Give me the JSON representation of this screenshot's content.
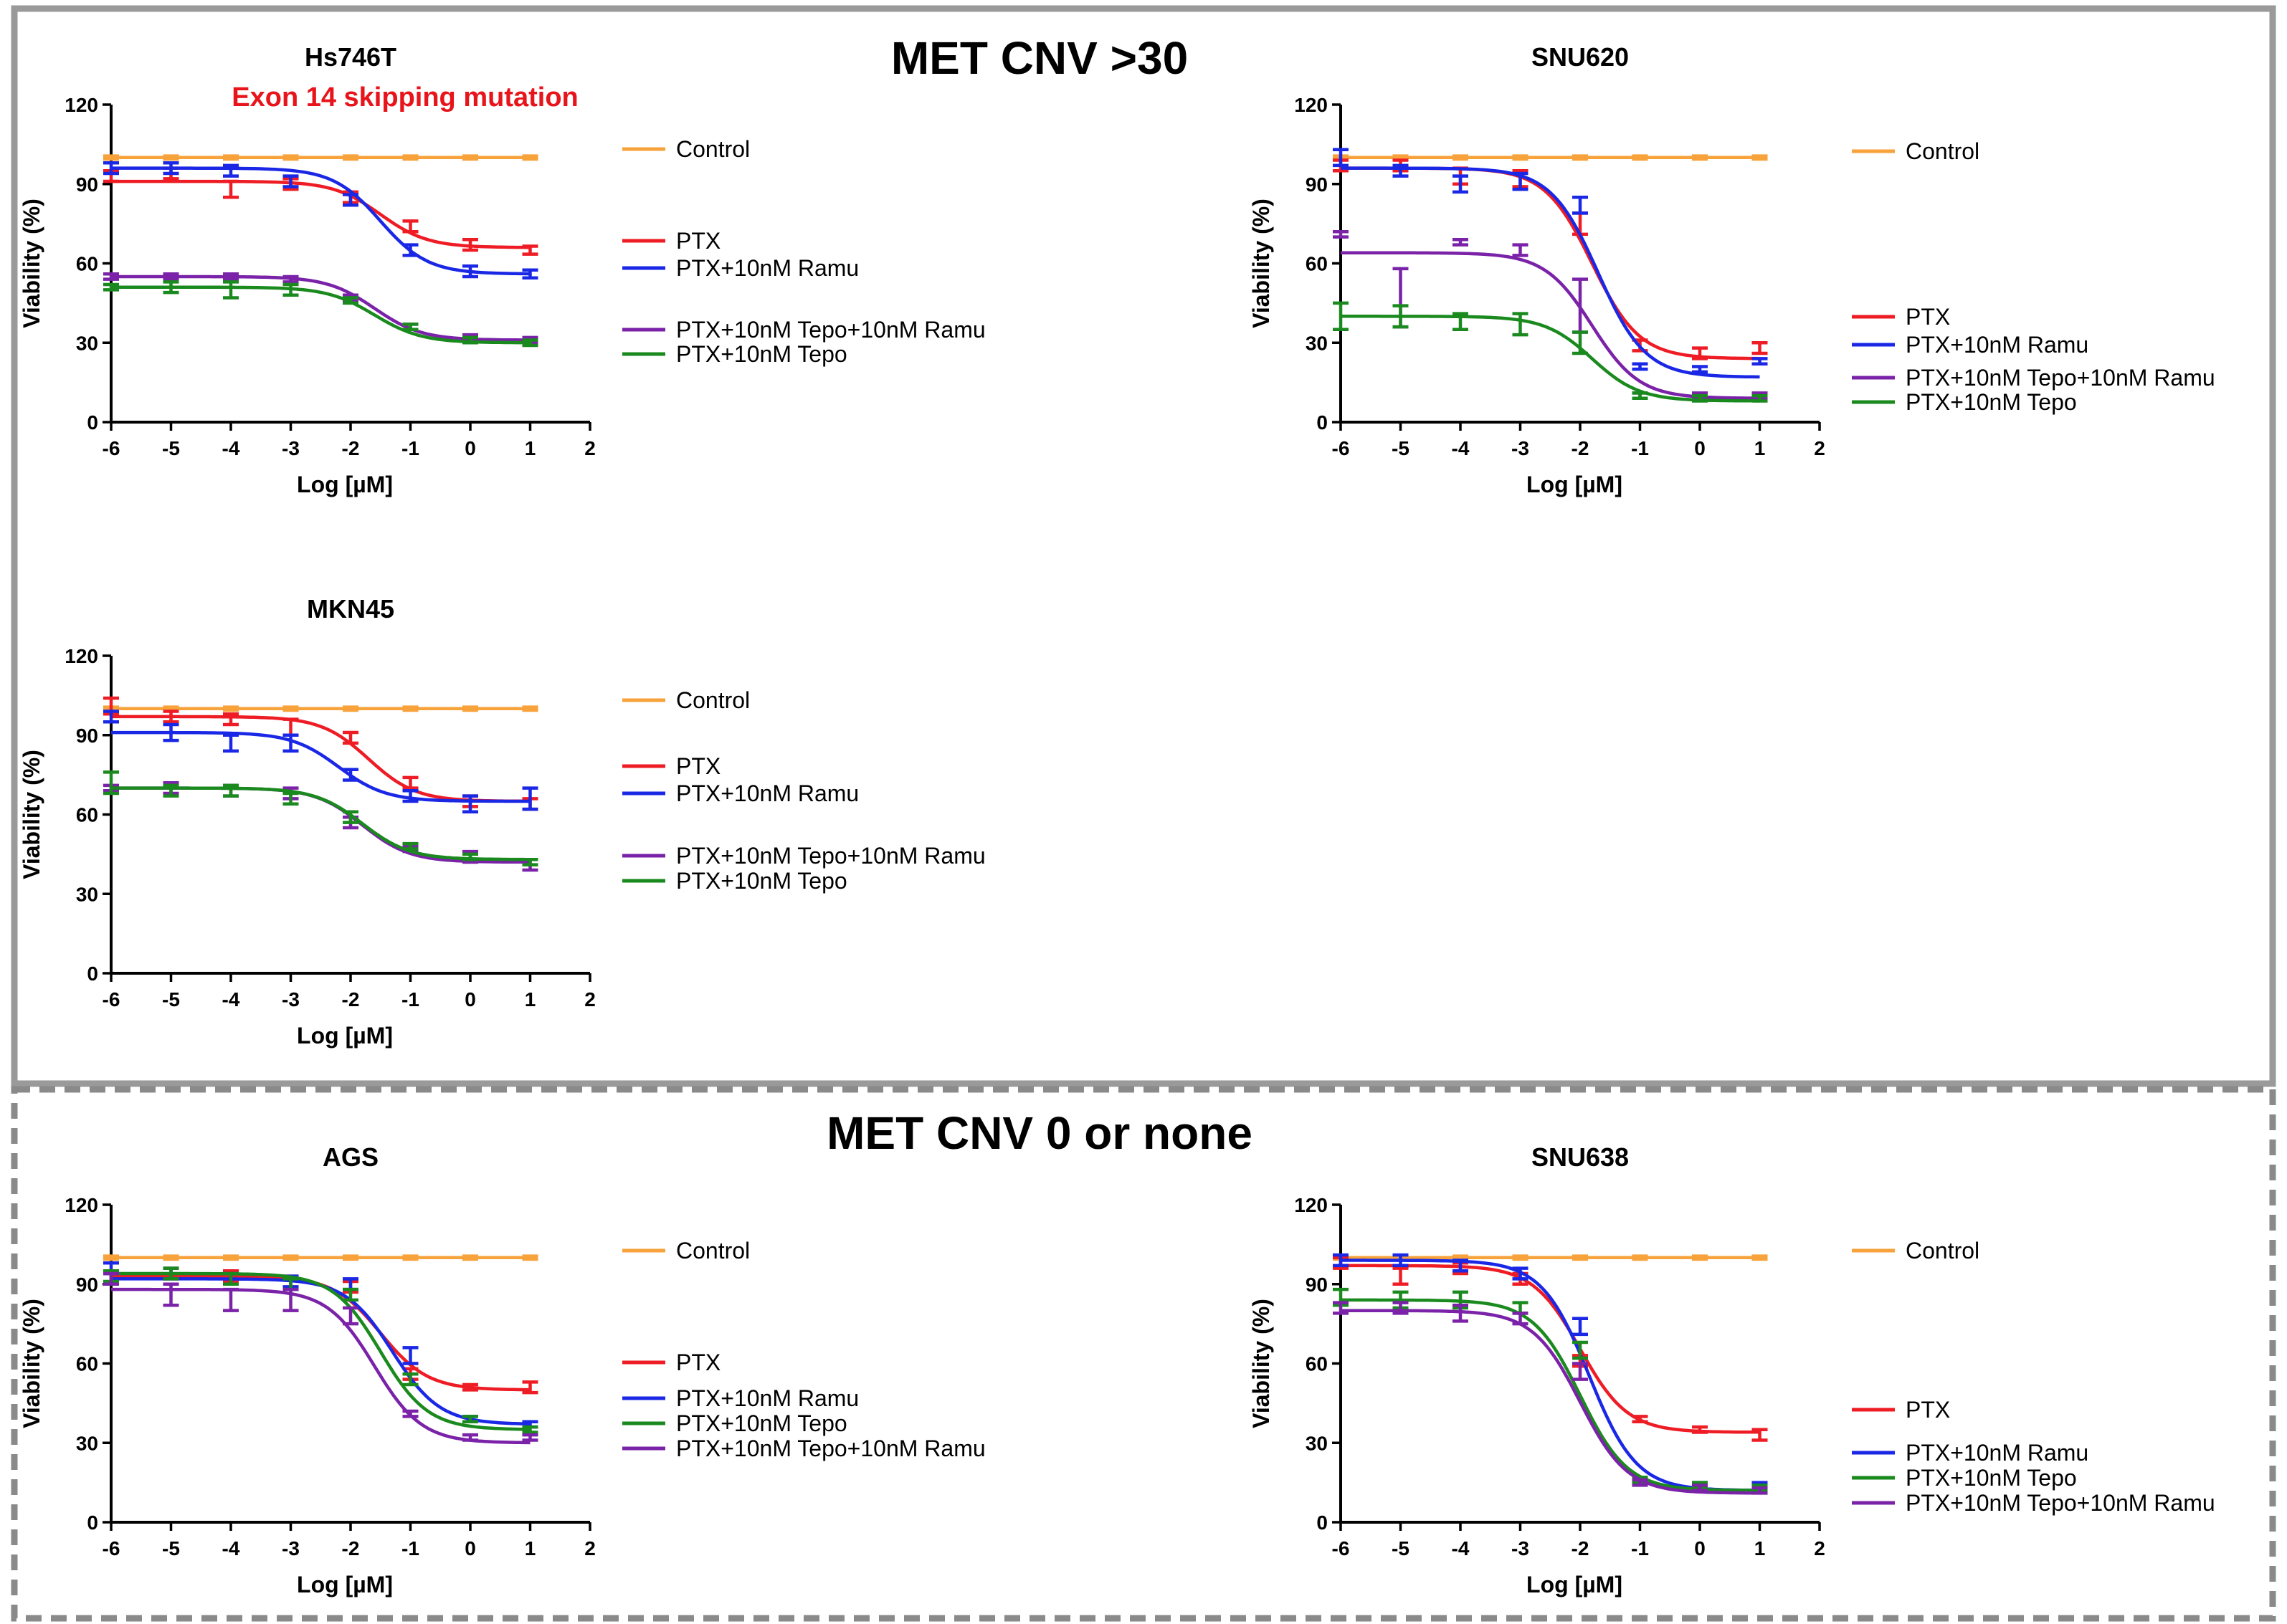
{
  "sections": [
    {
      "title": "MET CNV >30",
      "style": "solid"
    },
    {
      "title": "MET CNV 0 or none",
      "style": "dashed"
    }
  ],
  "annotation": "Exon 14 skipping mutation",
  "colors": {
    "Control": "#f7a23a",
    "PTX": "#ee1c24",
    "PTX+10nM Ramu": "#1a28e6",
    "PTX+10nM Tepo+10nM Ramu": "#7a22a8",
    "PTX+10nM Tepo": "#1a8a1e",
    "annotation": "#e8141b"
  },
  "chart_data": [
    {
      "type": "line",
      "title": "Hs746T",
      "xlabel": "Log [µM]",
      "ylabel": "Viability (%)",
      "xlim": [
        -6,
        2
      ],
      "ylim": [
        0,
        120
      ],
      "x_ticks": [
        "-6",
        "-5",
        "-4",
        "-3",
        "-2",
        "-1",
        "0",
        "1",
        "2"
      ],
      "y_ticks": [
        "0",
        "30",
        "60",
        "90",
        "120"
      ],
      "x": [
        -6,
        -5,
        -4,
        -3,
        -2,
        -1,
        0,
        1
      ],
      "series": [
        {
          "name": "Control",
          "values": [
            100,
            100,
            100,
            100,
            100,
            100,
            100,
            100
          ],
          "errors": [
            0,
            0,
            0,
            0,
            0,
            0,
            0,
            0
          ],
          "top": 100,
          "bottom": 100,
          "ec50": -2
        },
        {
          "name": "PTX",
          "values": [
            93,
            94,
            88,
            90,
            85,
            74,
            67,
            65
          ],
          "errors": [
            2,
            2,
            3,
            2,
            2,
            2,
            2,
            1.5
          ],
          "top": 91,
          "bottom": 66,
          "ec50": -1.5
        },
        {
          "name": "PTX+10nM Ramu",
          "values": [
            96,
            96,
            95,
            91,
            84,
            65,
            57,
            56
          ],
          "errors": [
            2,
            2,
            2,
            2,
            2,
            2,
            2,
            1.5
          ],
          "top": 96,
          "bottom": 56,
          "ec50": -1.5
        },
        {
          "name": "PTX+10nM Tepo+10nM Ramu",
          "values": [
            55,
            55,
            55,
            54,
            47,
            36,
            32,
            31
          ],
          "errors": [
            1,
            1,
            1,
            1,
            1,
            1,
            1,
            1
          ],
          "top": 55,
          "bottom": 31,
          "ec50": -1.6
        },
        {
          "name": "PTX+10nM Tepo",
          "values": [
            51,
            51,
            50,
            50,
            46,
            36,
            31,
            30
          ],
          "errors": [
            1,
            2,
            3,
            2,
            1,
            1,
            1,
            1
          ],
          "top": 51,
          "bottom": 30,
          "ec50": -1.6
        }
      ],
      "legend": {
        "Control": "Control",
        "PTX": "PTX",
        "PTX+10nM Ramu": "PTX+10nM Ramu",
        "PTX+10nM Tepo+10nM Ramu": "PTX+10nM Tepo+10nM Ramu",
        "PTX+10nM Tepo": "PTX+10nM Tepo"
      }
    },
    {
      "type": "line",
      "title": "SNU620",
      "xlabel": "Log [µM]",
      "ylabel": "Viability (%)",
      "xlim": [
        -6,
        2
      ],
      "ylim": [
        0,
        120
      ],
      "x_ticks": [
        "-6",
        "-5",
        "-4",
        "-3",
        "-2",
        "-1",
        "0",
        "1",
        "2"
      ],
      "y_ticks": [
        "0",
        "30",
        "60",
        "90",
        "120"
      ],
      "x": [
        -6,
        -5,
        -4,
        -3,
        -2,
        -1,
        0,
        1
      ],
      "series": [
        {
          "name": "Control",
          "values": [
            100,
            100,
            100,
            100,
            100,
            100,
            100,
            100
          ],
          "errors": [
            0,
            0,
            0,
            0,
            0,
            0,
            0,
            0
          ],
          "top": 100,
          "bottom": 100,
          "ec50": -2
        },
        {
          "name": "PTX",
          "values": [
            97,
            97,
            93,
            92,
            75,
            29,
            26,
            28
          ],
          "errors": [
            2,
            2,
            3,
            3,
            4,
            2,
            2,
            2
          ],
          "top": 96,
          "bottom": 24,
          "ec50": -1.8
        },
        {
          "name": "PTX+10nM Ramu",
          "values": [
            100,
            95,
            90,
            91,
            82,
            21,
            20,
            23
          ],
          "errors": [
            3,
            2,
            3,
            3,
            3,
            1,
            1,
            1
          ],
          "top": 96,
          "bottom": 17,
          "ec50": -1.7
        },
        {
          "name": "PTX+10nM Tepo+10nM Ramu",
          "values": [
            71,
            47,
            68,
            65,
            44,
            10,
            10,
            10
          ],
          "errors": [
            1,
            11,
            1,
            2,
            10,
            1,
            1,
            1
          ],
          "top": 64,
          "bottom": 9,
          "ec50": -1.8
        },
        {
          "name": "PTX+10nM Tepo",
          "values": [
            40,
            40,
            38,
            37,
            30,
            10,
            9,
            9
          ],
          "errors": [
            5,
            4,
            3,
            4,
            4,
            1,
            1,
            1
          ],
          "top": 40,
          "bottom": 8,
          "ec50": -1.8
        }
      ],
      "legend": {
        "Control": "Control",
        "PTX": "PTX",
        "PTX+10nM Ramu": "PTX+10nM Ramu",
        "PTX+10nM Tepo+10nM Ramu": "PTX+10nM Tepo+10nM Ramu",
        "PTX+10nM Tepo": "PTX+10nM Tepo"
      }
    },
    {
      "type": "line",
      "title": "MKN45",
      "xlabel": "Log [µM]",
      "ylabel": "Viability (%)",
      "xlim": [
        -6,
        2
      ],
      "ylim": [
        0,
        120
      ],
      "x_ticks": [
        "-6",
        "-5",
        "-4",
        "-3",
        "-2",
        "-1",
        "0",
        "1",
        "2"
      ],
      "y_ticks": [
        "0",
        "30",
        "60",
        "90",
        "120"
      ],
      "x": [
        -6,
        -5,
        -4,
        -3,
        -2,
        -1,
        0,
        1
      ],
      "series": [
        {
          "name": "Control",
          "values": [
            100,
            100,
            100,
            100,
            100,
            100,
            100,
            100
          ],
          "errors": [
            0,
            0,
            0,
            0,
            0,
            0,
            0,
            0
          ],
          "top": 100,
          "bottom": 100,
          "ec50": -2
        },
        {
          "name": "PTX",
          "values": [
            101,
            97,
            96,
            93,
            89,
            72,
            65,
            64
          ],
          "errors": [
            3,
            2,
            2,
            3,
            2,
            2,
            2,
            2
          ],
          "top": 97,
          "bottom": 65,
          "ec50": -1.7
        },
        {
          "name": "PTX+10nM Ramu",
          "values": [
            97,
            91,
            87,
            87,
            75,
            67,
            64,
            66
          ],
          "errors": [
            2,
            3,
            3,
            3,
            2,
            2,
            3,
            4
          ],
          "top": 91,
          "bottom": 65,
          "ec50": -2.2
        },
        {
          "name": "PTX+10nM Tepo+10nM Ramu",
          "values": [
            70,
            70,
            69,
            68,
            57,
            47,
            44,
            41
          ],
          "errors": [
            1,
            2,
            2,
            2,
            2,
            1,
            2,
            2
          ],
          "top": 70,
          "bottom": 42,
          "ec50": -1.8
        },
        {
          "name": "PTX+10nM Tepo",
          "values": [
            72,
            69,
            69,
            66,
            59,
            48,
            44,
            42
          ],
          "errors": [
            4,
            2,
            2,
            2,
            2,
            1,
            1,
            1
          ],
          "top": 70,
          "bottom": 43,
          "ec50": -1.8
        }
      ],
      "legend": {
        "Control": "Control",
        "PTX": "PTX",
        "PTX+10nM Ramu": "PTX+10nM Ramu",
        "PTX+10nM Tepo+10nM Ramu": "PTX+10nM Tepo+10nM Ramu",
        "PTX+10nM Tepo": "PTX+10nM Tepo"
      }
    },
    {
      "type": "line",
      "title": "AGS",
      "xlabel": "Log [µM]",
      "ylabel": "Viability (%)",
      "xlim": [
        -6,
        2
      ],
      "ylim": [
        0,
        120
      ],
      "x_ticks": [
        "-6",
        "-5",
        "-4",
        "-3",
        "-2",
        "-1",
        "0",
        "1",
        "2"
      ],
      "y_ticks": [
        "0",
        "30",
        "60",
        "90",
        "120"
      ],
      "x": [
        -6,
        -5,
        -4,
        -3,
        -2,
        -1,
        0,
        1
      ],
      "series": [
        {
          "name": "Control",
          "values": [
            100,
            100,
            100,
            100,
            100,
            100,
            100,
            100
          ],
          "errors": [
            0,
            0,
            0,
            0,
            0,
            0,
            0,
            0
          ],
          "top": 100,
          "bottom": 100,
          "ec50": -2
        },
        {
          "name": "PTX",
          "values": [
            92,
            94,
            93,
            91,
            89,
            56,
            51,
            51
          ],
          "errors": [
            2,
            2,
            2,
            2,
            2,
            2,
            1,
            2
          ],
          "top": 93,
          "bottom": 50,
          "ec50": -1.5
        },
        {
          "name": "PTX+10nM Ramu",
          "values": [
            96,
            94,
            92,
            91,
            90,
            63,
            39,
            37
          ],
          "errors": [
            2,
            2,
            2,
            2,
            2,
            3,
            1,
            1
          ],
          "top": 92,
          "bottom": 37,
          "ec50": -1.3
        },
        {
          "name": "PTX+10nM Tepo",
          "values": [
            93,
            94,
            92,
            90,
            86,
            54,
            39,
            35
          ],
          "errors": [
            2,
            2,
            2,
            2,
            2,
            2,
            1,
            1
          ],
          "top": 94,
          "bottom": 35,
          "ec50": -1.5
        },
        {
          "name": "PTX+10nM Tepo+10nM Ramu",
          "values": [
            92,
            86,
            84,
            84,
            78,
            41,
            32,
            32
          ],
          "errors": [
            2,
            4,
            4,
            4,
            3,
            1,
            1,
            1
          ],
          "top": 88,
          "bottom": 30,
          "ec50": -1.6
        }
      ],
      "legend": {
        "Control": "Control",
        "PTX": "PTX",
        "PTX+10nM Ramu": "PTX+10nM Ramu",
        "PTX+10nM Tepo": "PTX+10nM Tepo",
        "PTX+10nM Tepo+10nM Ramu": "PTX+10nM Tepo+10nM Ramu"
      }
    },
    {
      "type": "line",
      "title": "SNU638",
      "xlabel": "Log [µM]",
      "ylabel": "Viability (%)",
      "xlim": [
        -6,
        2
      ],
      "ylim": [
        0,
        120
      ],
      "x_ticks": [
        "-6",
        "-5",
        "-4",
        "-3",
        "-2",
        "-1",
        "0",
        "1",
        "2"
      ],
      "y_ticks": [
        "0",
        "30",
        "60",
        "90",
        "120"
      ],
      "x": [
        -6,
        -5,
        -4,
        -3,
        -2,
        -1,
        0,
        1
      ],
      "series": [
        {
          "name": "Control",
          "values": [
            100,
            100,
            100,
            100,
            100,
            100,
            100,
            100
          ],
          "errors": [
            0,
            0,
            0,
            0,
            0,
            0,
            0,
            0
          ],
          "top": 100,
          "bottom": 100,
          "ec50": -2
        },
        {
          "name": "PTX",
          "values": [
            98,
            93,
            96,
            92,
            61,
            39,
            35,
            33
          ],
          "errors": [
            2,
            3,
            2,
            2,
            2,
            1,
            1,
            2
          ],
          "top": 97,
          "bottom": 34,
          "ec50": -2
        },
        {
          "name": "PTX+10nM Ramu",
          "values": [
            99,
            99,
            97,
            94,
            74,
            16,
            14,
            14
          ],
          "errors": [
            2,
            2,
            2,
            2,
            3,
            1,
            1,
            1
          ],
          "top": 99,
          "bottom": 12,
          "ec50": -1.85
        },
        {
          "name": "PTX+10nM Tepo",
          "values": [
            85,
            84,
            84,
            81,
            65,
            16,
            14,
            13
          ],
          "errors": [
            3,
            3,
            3,
            2,
            3,
            1,
            1,
            1
          ],
          "top": 84,
          "bottom": 12,
          "ec50": -2
        },
        {
          "name": "PTX+10nM Tepo+10nM Ramu",
          "values": [
            81,
            81,
            79,
            77,
            57,
            15,
            13,
            12
          ],
          "errors": [
            2,
            2,
            3,
            2,
            3,
            1,
            1,
            1
          ],
          "top": 80,
          "bottom": 11,
          "ec50": -2
        }
      ],
      "legend": {
        "Control": "Control",
        "PTX": "PTX",
        "PTX+10nM Ramu": "PTX+10nM Ramu",
        "PTX+10nM Tepo": "PTX+10nM Tepo",
        "PTX+10nM Tepo+10nM Ramu": "PTX+10nM Tepo+10nM Ramu"
      }
    }
  ]
}
